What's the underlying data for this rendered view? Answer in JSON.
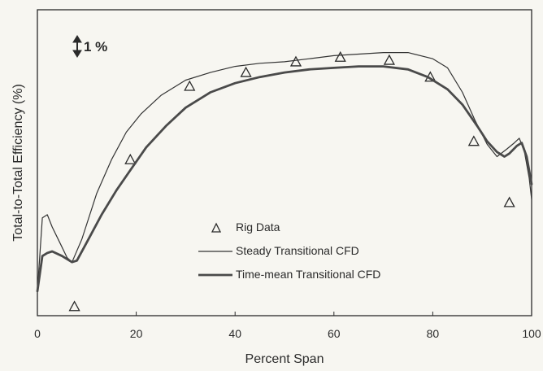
{
  "chart_data": {
    "type": "line",
    "title": "",
    "xlabel": "Percent Span",
    "ylabel": "Total-to-Total Efficiency (%)",
    "xlim": [
      0,
      100
    ],
    "ylim": [
      0,
      100
    ],
    "x_ticks": [
      "0",
      "20",
      "40",
      "60",
      "80",
      "100"
    ],
    "y_tick_labels": "none",
    "scale_marker": "1 %",
    "grid": false,
    "legend_position": "bottom-center",
    "series": [
      {
        "name": "Rig Data",
        "style": "triangle-markers",
        "color": "#2a2a2a",
        "points": [
          [
            7.5,
            3
          ],
          [
            18.8,
            51
          ],
          [
            30.8,
            75
          ],
          [
            42.2,
            79.5
          ],
          [
            52.3,
            83
          ],
          [
            61.3,
            84.5
          ],
          [
            71.2,
            83.5
          ],
          [
            79.5,
            78
          ],
          [
            88.3,
            57
          ],
          [
            95.5,
            37
          ]
        ]
      },
      {
        "name": "Steady Transitional CFD",
        "style": "thin-line",
        "color": "#333333",
        "points": [
          [
            0,
            8
          ],
          [
            1,
            32
          ],
          [
            2,
            33
          ],
          [
            3,
            29
          ],
          [
            4.5,
            24
          ],
          [
            6,
            19
          ],
          [
            7,
            17.5
          ],
          [
            9,
            25
          ],
          [
            12,
            40
          ],
          [
            15,
            51
          ],
          [
            18,
            60
          ],
          [
            21,
            66
          ],
          [
            25,
            72
          ],
          [
            30,
            77
          ],
          [
            35,
            79.5
          ],
          [
            40,
            81.5
          ],
          [
            45,
            82.5
          ],
          [
            50,
            83
          ],
          [
            55,
            84
          ],
          [
            60,
            85
          ],
          [
            65,
            85.5
          ],
          [
            70,
            86
          ],
          [
            75,
            86
          ],
          [
            80,
            84
          ],
          [
            83,
            81
          ],
          [
            86,
            73
          ],
          [
            88.5,
            64
          ],
          [
            91,
            56
          ],
          [
            93,
            52
          ],
          [
            95,
            54.5
          ],
          [
            96.5,
            56.5
          ],
          [
            97.5,
            58
          ],
          [
            98.5,
            54
          ],
          [
            99.5,
            45
          ],
          [
            100,
            38
          ]
        ]
      },
      {
        "name": "Time-mean Transitional CFD",
        "style": "thick-line",
        "color": "#4a4a4a",
        "points": [
          [
            0,
            8
          ],
          [
            1,
            19.5
          ],
          [
            2,
            20.5
          ],
          [
            3,
            21
          ],
          [
            5,
            19.5
          ],
          [
            7,
            17.5
          ],
          [
            8,
            18
          ],
          [
            10,
            24
          ],
          [
            13,
            33
          ],
          [
            16,
            41
          ],
          [
            19,
            48
          ],
          [
            22,
            55
          ],
          [
            26,
            62
          ],
          [
            30,
            68
          ],
          [
            35,
            73
          ],
          [
            40,
            76
          ],
          [
            45,
            78
          ],
          [
            50,
            79.5
          ],
          [
            55,
            80.5
          ],
          [
            60,
            81
          ],
          [
            65,
            81.5
          ],
          [
            70,
            81.5
          ],
          [
            75,
            80.5
          ],
          [
            79,
            78
          ],
          [
            83,
            74
          ],
          [
            86,
            69
          ],
          [
            89,
            62
          ],
          [
            91,
            57
          ],
          [
            93,
            53.5
          ],
          [
            94.5,
            52
          ],
          [
            95.5,
            53
          ],
          [
            97,
            55.5
          ],
          [
            98,
            56.5
          ],
          [
            99,
            52
          ],
          [
            100,
            43
          ]
        ]
      }
    ]
  }
}
